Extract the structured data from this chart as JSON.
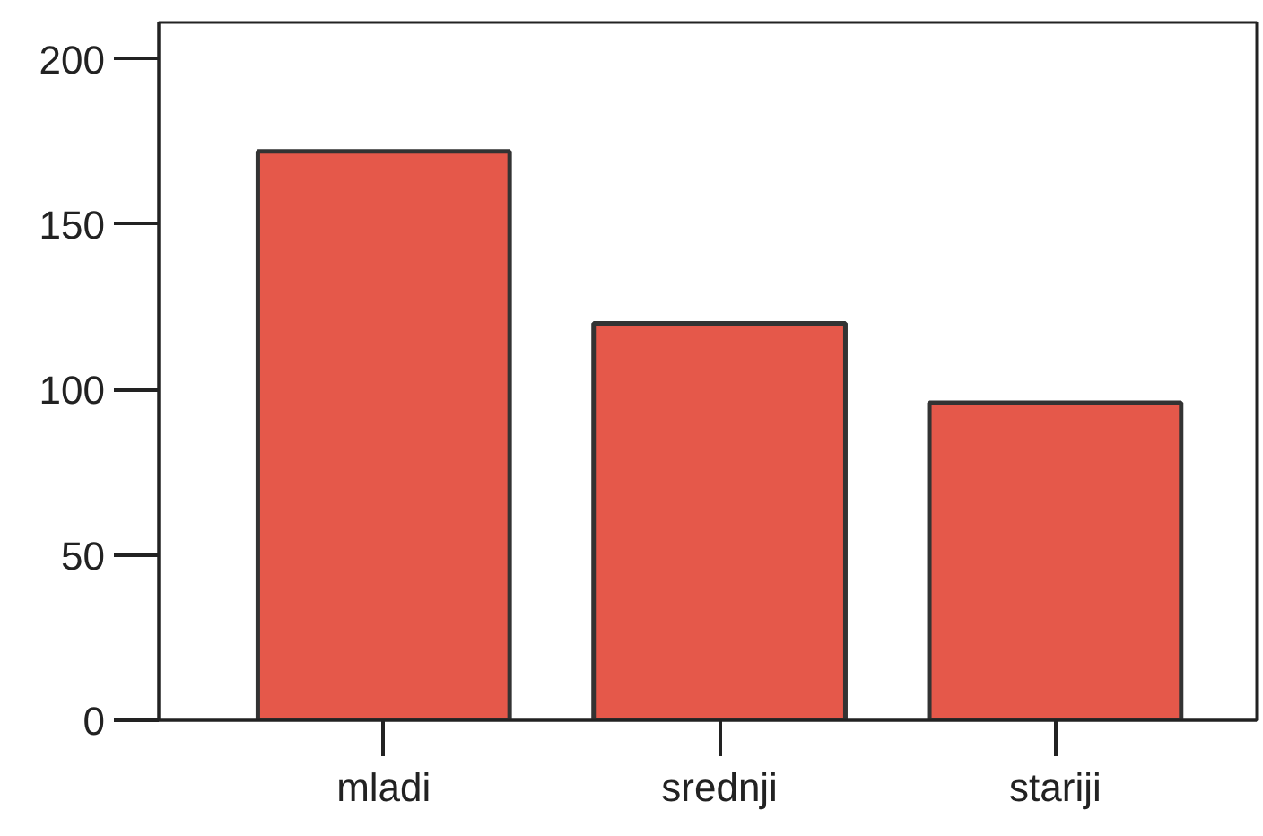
{
  "chart_data": {
    "type": "bar",
    "categories": [
      "mladi",
      "srednji",
      "stariji"
    ],
    "values": [
      172,
      120,
      96
    ],
    "color": "#e5584a",
    "ylim": [
      0,
      211
    ],
    "yticks": [
      0,
      50,
      100,
      150,
      200
    ],
    "grid": false
  }
}
